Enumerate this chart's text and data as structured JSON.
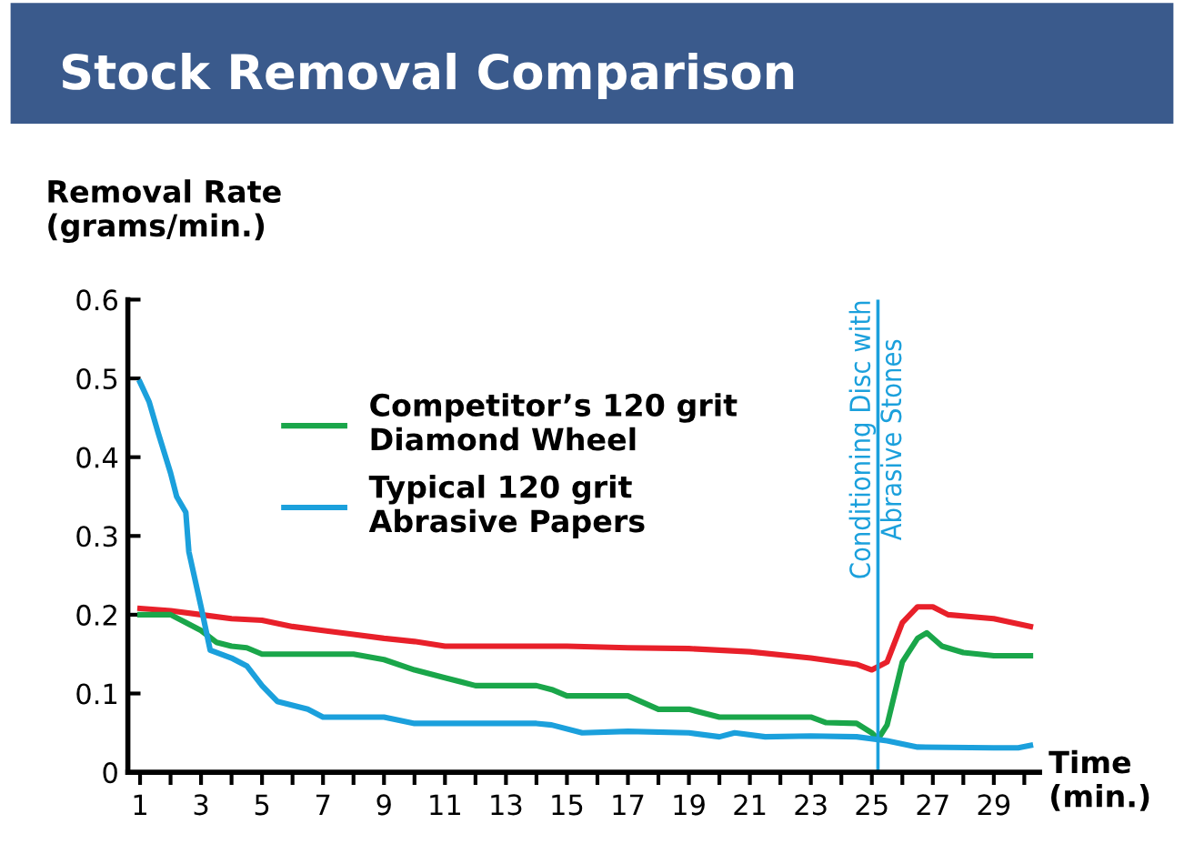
{
  "chart_data": {
    "type": "line",
    "title": "Stock Removal Comparison",
    "ylabel": "Removal Rate\n(grams/min.)",
    "xlabel": "Time\n(min.)",
    "xlim": [
      0.6,
      30.5
    ],
    "ylim": [
      0,
      0.6
    ],
    "xticks": [
      1,
      {
        "value": 2,
        "label": null
      },
      3,
      {
        "value": 4,
        "label": null
      },
      5,
      {
        "value": 6,
        "label": null
      },
      7,
      {
        "value": 8,
        "label": null
      },
      9,
      {
        "value": 10,
        "label": null
      },
      11,
      {
        "value": 12,
        "label": null
      },
      13,
      {
        "value": 14,
        "label": null
      },
      15,
      {
        "value": 16,
        "label": null
      },
      17,
      {
        "value": 18,
        "label": null
      },
      19,
      {
        "value": 20,
        "label": null
      },
      21,
      {
        "value": 22,
        "label": null
      },
      23,
      {
        "value": 24,
        "label": null
      },
      25,
      {
        "value": 26,
        "label": null
      },
      27,
      {
        "value": 28,
        "label": null
      },
      29,
      {
        "value": 30,
        "label": null
      }
    ],
    "yticks": [
      0,
      0.1,
      0.2,
      0.3,
      0.4,
      0.5,
      0.6
    ],
    "grid": false,
    "legend": "top",
    "marker": "none",
    "line_style": "solid",
    "series": [
      {
        "color": "#e8202a",
        "x": [
          1,
          2,
          3,
          4,
          5,
          6,
          7,
          8,
          9,
          10,
          11,
          13,
          15,
          17,
          19,
          21,
          23,
          24.5,
          25,
          25.5,
          26,
          26.5,
          27,
          27.5,
          29,
          30.2
        ],
        "values": [
          0.208,
          0.205,
          0.2,
          0.195,
          0.193,
          0.185,
          0.18,
          0.175,
          0.17,
          0.166,
          0.16,
          0.16,
          0.16,
          0.158,
          0.157,
          0.153,
          0.145,
          0.137,
          0.13,
          0.14,
          0.19,
          0.21,
          0.21,
          0.2,
          0.195,
          0.185
        ]
      },
      {
        "name": "Competitor’s 120 grit\nDiamond Wheel",
        "color": "#1aa64a",
        "x": [
          1,
          1.5,
          2,
          2.5,
          3,
          3.5,
          4,
          4.5,
          5,
          6,
          8,
          9,
          10,
          11,
          12,
          14,
          14.5,
          15,
          17,
          18,
          19,
          20,
          23,
          23.5,
          24.5,
          25,
          25.2,
          25.5,
          26,
          26.5,
          26.8,
          27.3,
          28,
          29,
          30.2
        ],
        "values": [
          0.2,
          0.2,
          0.2,
          0.19,
          0.18,
          0.165,
          0.16,
          0.158,
          0.15,
          0.15,
          0.15,
          0.143,
          0.13,
          0.12,
          0.11,
          0.11,
          0.105,
          0.097,
          0.097,
          0.08,
          0.08,
          0.07,
          0.07,
          0.063,
          0.062,
          0.05,
          0.042,
          0.06,
          0.14,
          0.17,
          0.177,
          0.16,
          0.152,
          0.148,
          0.148
        ]
      },
      {
        "name": "Typical 120 grit\nAbrasive Papers",
        "color": "#1ba0dc",
        "x": [
          1,
          1.3,
          1.6,
          2,
          2.2,
          2.5,
          2.6,
          3,
          3.3,
          4,
          4.5,
          5,
          5.5,
          6,
          6.5,
          7,
          9,
          10,
          14,
          14.5,
          15.5,
          17,
          19,
          20,
          20.5,
          21.5,
          23,
          24.5,
          25.5,
          26.5,
          29,
          29.8,
          30.2
        ],
        "values": [
          0.495,
          0.47,
          0.43,
          0.38,
          0.35,
          0.33,
          0.28,
          0.21,
          0.155,
          0.145,
          0.135,
          0.11,
          0.09,
          0.085,
          0.08,
          0.07,
          0.07,
          0.062,
          0.062,
          0.06,
          0.05,
          0.052,
          0.05,
          0.045,
          0.05,
          0.045,
          0.046,
          0.045,
          0.04,
          0.032,
          0.031,
          0.031,
          0.034
        ]
      }
    ],
    "ref_lines": [
      {
        "axis": "x",
        "value": 25.2,
        "label": "Conditioning Disc with\nAbrasive Stones",
        "color": "#1ba0dc"
      }
    ]
  }
}
